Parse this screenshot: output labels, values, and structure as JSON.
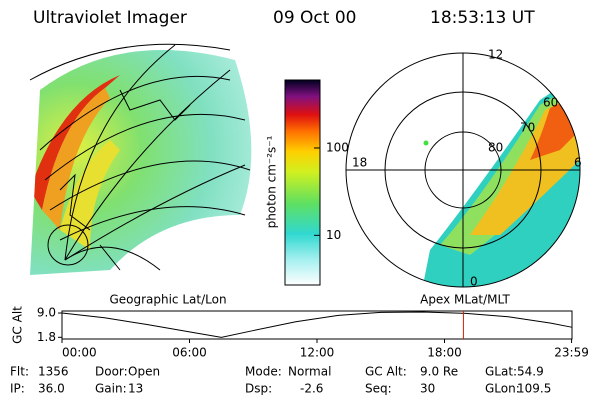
{
  "header": {
    "instrument": "Ultraviolet Imager",
    "date": "09 Oct 00",
    "time": "18:53:13 UT"
  },
  "colorbar": {
    "label": "photon cm⁻²s⁻¹",
    "log": true,
    "lim": [
      2.7,
      600
    ],
    "ticks": [
      10,
      100
    ]
  },
  "geo_panel": {
    "label": "Geographic Lat/Lon"
  },
  "polar_panel": {
    "label": "Apex MLat/MLT",
    "mlt_labels": [
      "12",
      "18",
      "6",
      "0"
    ],
    "lat_labels": [
      "80",
      "70",
      "60"
    ]
  },
  "altitude_chart": {
    "type": "line",
    "ylabel": "GC Alt",
    "x": [
      0,
      2,
      4,
      6,
      7.5,
      9,
      11,
      13,
      15,
      17,
      19,
      21,
      23,
      23.98
    ],
    "values": [
      9.0,
      7.6,
      5.6,
      3.4,
      1.8,
      3.8,
      6.4,
      8.3,
      9.2,
      9.3,
      8.9,
      7.9,
      6.0,
      4.8
    ],
    "xlim": [
      0,
      24
    ],
    "ylim": [
      1.3,
      9.6
    ],
    "xticks": [
      {
        "value": 0,
        "label": "00:00"
      },
      {
        "value": 6,
        "label": "06:00"
      },
      {
        "value": 12,
        "label": "12:00"
      },
      {
        "value": 18,
        "label": "18:00"
      },
      {
        "value": 23.98,
        "label": "23:59"
      }
    ],
    "yticks": [
      1.8,
      {
        "value": 9,
        "label": "9.0"
      }
    ],
    "marker_x": 18.89,
    "color": "#000000",
    "marker_color": "#cc2200"
  },
  "info": [
    [
      [
        "Flt:",
        "1356"
      ],
      [
        "Door:",
        "Open"
      ],
      [
        "Mode:",
        "Normal"
      ],
      [
        "GC Alt:",
        "9.0 Re"
      ],
      [
        "GLat:",
        "54.9"
      ]
    ],
    [
      [
        "IP:",
        "36.0"
      ],
      [
        "Gain:",
        "13"
      ],
      [
        "Dsp:",
        "-2.6"
      ],
      [
        "Seq:",
        "30"
      ],
      [
        "GLon:",
        "109.5"
      ]
    ]
  ]
}
